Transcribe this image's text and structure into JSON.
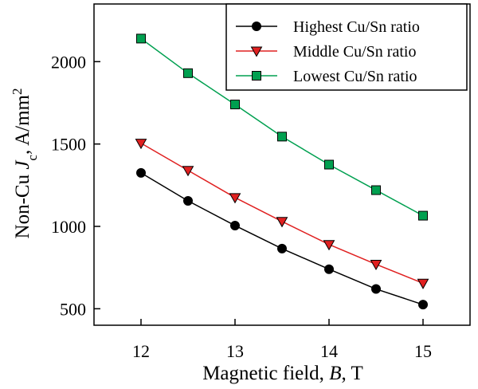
{
  "chart_data": {
    "type": "line",
    "xlabel": {
      "pre": "Magnetic field, ",
      "italic": "B",
      "post": ", T"
    },
    "ylabel": {
      "pre": "Non-Cu ",
      "italic": "J",
      "sub": "c",
      "post": ", A/mm",
      "sup": "2"
    },
    "xlim": [
      11.5,
      15.5
    ],
    "ylim": [
      400,
      2350
    ],
    "xticks": [
      12,
      13,
      14,
      15
    ],
    "yticks": [
      500,
      1000,
      1500,
      2000
    ],
    "x": [
      12,
      12.5,
      13,
      13.5,
      14,
      14.5,
      15
    ],
    "grid": false,
    "legend_position": "top-right",
    "series": [
      {
        "name": "Highest Cu/Sn ratio",
        "marker": "circle",
        "line_color": "#000000",
        "marker_fill": "#000000",
        "values": [
          1325,
          1155,
          1005,
          865,
          740,
          620,
          525
        ]
      },
      {
        "name": "Middle Cu/Sn ratio",
        "marker": "triangle-down",
        "line_color": "#e02020",
        "marker_fill": "#e02020",
        "values": [
          1505,
          1340,
          1175,
          1030,
          890,
          770,
          655
        ]
      },
      {
        "name": "Lowest Cu/Sn ratio",
        "marker": "square",
        "line_color": "#00a050",
        "marker_fill": "#00a050",
        "values": [
          2140,
          1930,
          1740,
          1545,
          1375,
          1220,
          1065
        ]
      }
    ]
  }
}
